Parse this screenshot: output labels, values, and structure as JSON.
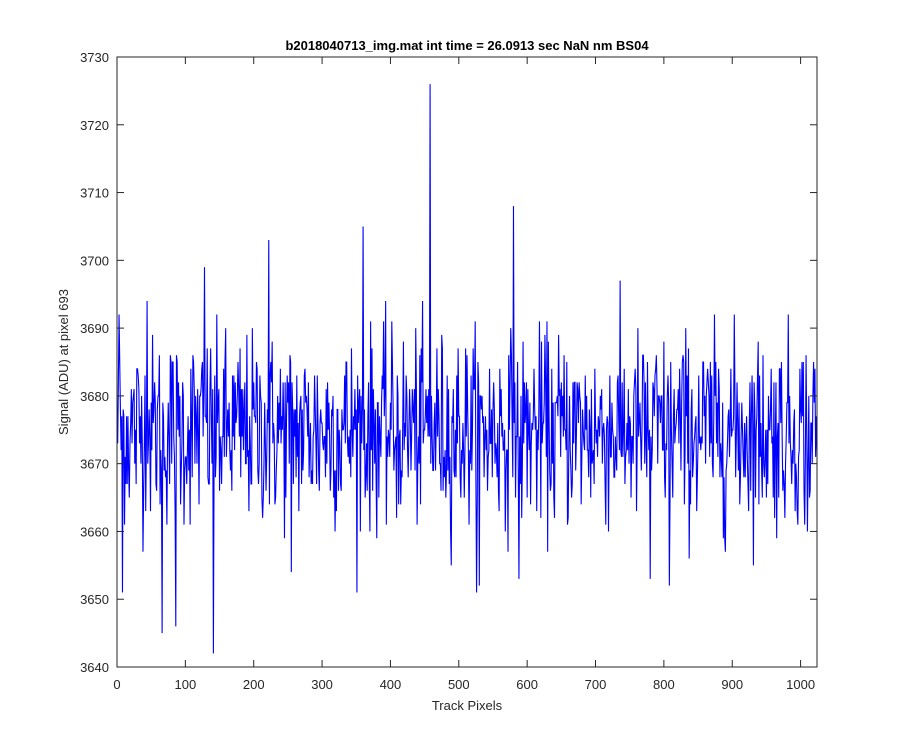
{
  "chart_data": {
    "type": "line",
    "title": "b2018040713_img.mat int time = 26.0913 sec  NaN nm BS04",
    "xlabel": "Track Pixels",
    "ylabel": "Signal (ADU) at pixel 693",
    "xlim": [
      0,
      1024
    ],
    "ylim": [
      3640,
      3730
    ],
    "x_ticks": [
      0,
      100,
      200,
      300,
      400,
      500,
      600,
      700,
      800,
      900,
      1000
    ],
    "y_ticks": [
      3640,
      3650,
      3660,
      3670,
      3680,
      3690,
      3700,
      3710,
      3720,
      3730
    ],
    "grid": false,
    "legend": "none",
    "series": [
      {
        "color": "#0000ff",
        "x_start": 1,
        "x_step": 1,
        "count": 1024,
        "mean": 3675,
        "std": 7,
        "notable_points": [
          {
            "x": 3,
            "y": 3692
          },
          {
            "x": 8,
            "y": 3651
          },
          {
            "x": 44,
            "y": 3694
          },
          {
            "x": 66,
            "y": 3645
          },
          {
            "x": 86,
            "y": 3646
          },
          {
            "x": 128,
            "y": 3699
          },
          {
            "x": 141,
            "y": 3642
          },
          {
            "x": 222,
            "y": 3703
          },
          {
            "x": 255,
            "y": 3654
          },
          {
            "x": 360,
            "y": 3705
          },
          {
            "x": 458,
            "y": 3726
          },
          {
            "x": 530,
            "y": 3652
          },
          {
            "x": 580,
            "y": 3708
          },
          {
            "x": 588,
            "y": 3653
          },
          {
            "x": 780,
            "y": 3653
          },
          {
            "x": 808,
            "y": 3652
          },
          {
            "x": 1010,
            "y": 3660
          }
        ]
      }
    ]
  }
}
